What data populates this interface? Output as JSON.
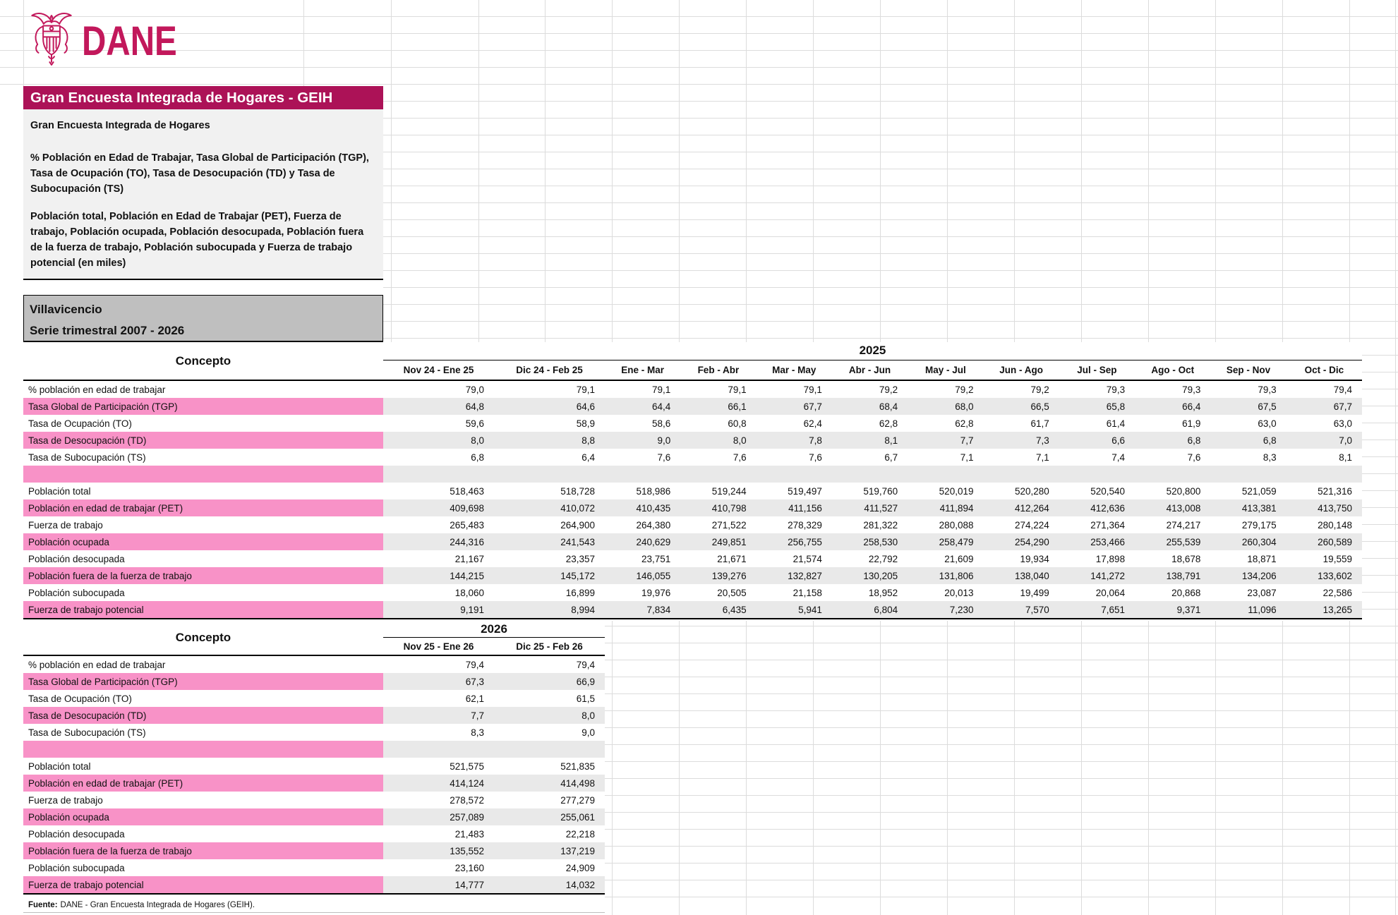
{
  "brand": {
    "name": "DANE",
    "logo_color": "#C2185B",
    "bar_color": "#AC1257"
  },
  "title_bar": {
    "text": "Gran Encuesta Integrada de Hogares - GEIH"
  },
  "description": {
    "subtitle": "Gran Encuesta Integrada de Hogares",
    "indicators": "% Población en Edad de Trabajar, Tasa Global de Participación (TGP), Tasa de Ocupación (TO), Tasa de Desocupación (TD) y Tasa de Subocupación (TS)",
    "populations": "Población total, Población en Edad de Trabajar (PET), Fuerza de trabajo, Población ocupada, Población desocupada, Población fuera de la fuerza de trabajo, Población subocupada y Fuerza de trabajo potencial (en miles)"
  },
  "region": {
    "city": "Villavicencio",
    "series": "Serie trimestral 2007 - 2026"
  },
  "colors": {
    "row_pink": "#F892C7",
    "cell_gray": "#E9E9E9",
    "desc_bg": "#F1F1F1",
    "region_bg": "#BFBFBF"
  },
  "tables": [
    {
      "concept_label": "Concepto",
      "year": "2025",
      "columns": [
        "Nov 24 - Ene 25",
        "Dic 24 - Feb 25",
        "Ene - Mar",
        "Feb - Abr",
        "Mar - May",
        "Abr - Jun",
        "May - Jul",
        "Jun - Ago",
        "Jul - Sep",
        "Ago - Oct",
        "Sep - Nov",
        "Oct - Dic"
      ],
      "rows": [
        {
          "label": "% población en edad de trabajar",
          "highlight": false,
          "values": [
            "79,0",
            "79,1",
            "79,1",
            "79,1",
            "79,1",
            "79,2",
            "79,2",
            "79,2",
            "79,3",
            "79,3",
            "79,3",
            "79,4"
          ]
        },
        {
          "label": "Tasa Global de Participación (TGP)",
          "highlight": true,
          "values": [
            "64,8",
            "64,6",
            "64,4",
            "66,1",
            "67,7",
            "68,4",
            "68,0",
            "66,5",
            "65,8",
            "66,4",
            "67,5",
            "67,7"
          ]
        },
        {
          "label": "Tasa de Ocupación (TO)",
          "highlight": false,
          "values": [
            "59,6",
            "58,9",
            "58,6",
            "60,8",
            "62,4",
            "62,8",
            "62,8",
            "61,7",
            "61,4",
            "61,9",
            "63,0",
            "63,0"
          ]
        },
        {
          "label": "Tasa de Desocupación (TD)",
          "highlight": true,
          "values": [
            "8,0",
            "8,8",
            "9,0",
            "8,0",
            "7,8",
            "8,1",
            "7,7",
            "7,3",
            "6,6",
            "6,8",
            "6,8",
            "7,0"
          ]
        },
        {
          "label": "Tasa de Subocupación (TS)",
          "highlight": false,
          "values": [
            "6,8",
            "6,4",
            "7,6",
            "7,6",
            "7,6",
            "6,7",
            "7,1",
            "7,1",
            "7,4",
            "7,6",
            "8,3",
            "8,1"
          ]
        },
        {
          "label": "",
          "highlight": true,
          "spacer": true,
          "values": [
            "",
            "",
            "",
            "",
            "",
            "",
            "",
            "",
            "",
            "",
            "",
            ""
          ]
        },
        {
          "label": "Población total",
          "highlight": false,
          "values": [
            "518,463",
            "518,728",
            "518,986",
            "519,244",
            "519,497",
            "519,760",
            "520,019",
            "520,280",
            "520,540",
            "520,800",
            "521,059",
            "521,316"
          ]
        },
        {
          "label": "Población en edad de trabajar (PET)",
          "highlight": true,
          "values": [
            "409,698",
            "410,072",
            "410,435",
            "410,798",
            "411,156",
            "411,527",
            "411,894",
            "412,264",
            "412,636",
            "413,008",
            "413,381",
            "413,750"
          ]
        },
        {
          "label": "Fuerza de trabajo",
          "highlight": false,
          "values": [
            "265,483",
            "264,900",
            "264,380",
            "271,522",
            "278,329",
            "281,322",
            "280,088",
            "274,224",
            "271,364",
            "274,217",
            "279,175",
            "280,148"
          ]
        },
        {
          "label": "Población ocupada",
          "highlight": true,
          "values": [
            "244,316",
            "241,543",
            "240,629",
            "249,851",
            "256,755",
            "258,530",
            "258,479",
            "254,290",
            "253,466",
            "255,539",
            "260,304",
            "260,589"
          ]
        },
        {
          "label": "Población desocupada",
          "highlight": false,
          "values": [
            "21,167",
            "23,357",
            "23,751",
            "21,671",
            "21,574",
            "22,792",
            "21,609",
            "19,934",
            "17,898",
            "18,678",
            "18,871",
            "19,559"
          ]
        },
        {
          "label": "Población fuera de la fuerza de trabajo",
          "highlight": true,
          "values": [
            "144,215",
            "145,172",
            "146,055",
            "139,276",
            "132,827",
            "130,205",
            "131,806",
            "138,040",
            "141,272",
            "138,791",
            "134,206",
            "133,602"
          ]
        },
        {
          "label": "Población subocupada",
          "highlight": false,
          "values": [
            "18,060",
            "16,899",
            "19,976",
            "20,505",
            "21,158",
            "18,952",
            "20,013",
            "19,499",
            "20,064",
            "20,868",
            "23,087",
            "22,586"
          ]
        },
        {
          "label": "Fuerza de trabajo potencial",
          "highlight": true,
          "values": [
            "9,191",
            "8,994",
            "7,834",
            "6,435",
            "5,941",
            "6,804",
            "7,230",
            "7,570",
            "7,651",
            "9,371",
            "11,096",
            "13,265"
          ]
        }
      ]
    },
    {
      "concept_label": "Concepto",
      "year": "2026",
      "columns": [
        "Nov 25 - Ene 26",
        "Dic 25 - Feb 26"
      ],
      "rows": [
        {
          "label": "% población en edad de trabajar",
          "highlight": false,
          "values": [
            "79,4",
            "79,4"
          ]
        },
        {
          "label": "Tasa Global de Participación (TGP)",
          "highlight": true,
          "values": [
            "67,3",
            "66,9"
          ]
        },
        {
          "label": "Tasa de Ocupación (TO)",
          "highlight": false,
          "values": [
            "62,1",
            "61,5"
          ]
        },
        {
          "label": "Tasa de Desocupación (TD)",
          "highlight": true,
          "values": [
            "7,7",
            "8,0"
          ]
        },
        {
          "label": "Tasa de Subocupación (TS)",
          "highlight": false,
          "values": [
            "8,3",
            "9,0"
          ]
        },
        {
          "label": "",
          "highlight": true,
          "spacer": true,
          "values": [
            "",
            ""
          ]
        },
        {
          "label": "Población total",
          "highlight": false,
          "values": [
            "521,575",
            "521,835"
          ]
        },
        {
          "label": "Población en edad de trabajar (PET)",
          "highlight": true,
          "values": [
            "414,124",
            "414,498"
          ]
        },
        {
          "label": "Fuerza de trabajo",
          "highlight": false,
          "values": [
            "278,572",
            "277,279"
          ]
        },
        {
          "label": "Población ocupada",
          "highlight": true,
          "values": [
            "257,089",
            "255,061"
          ]
        },
        {
          "label": "Población desocupada",
          "highlight": false,
          "values": [
            "21,483",
            "22,218"
          ]
        },
        {
          "label": "Población fuera de la fuerza de trabajo",
          "highlight": true,
          "values": [
            "135,552",
            "137,219"
          ]
        },
        {
          "label": "Población subocupada",
          "highlight": false,
          "values": [
            "23,160",
            "24,909"
          ]
        },
        {
          "label": "Fuerza de trabajo potencial",
          "highlight": true,
          "values": [
            "14,777",
            "14,032"
          ]
        }
      ]
    }
  ],
  "footer": {
    "source_label": "Fuente:",
    "source_text": "DANE - Gran Encuesta Integrada de Hogares (GEIH)."
  }
}
